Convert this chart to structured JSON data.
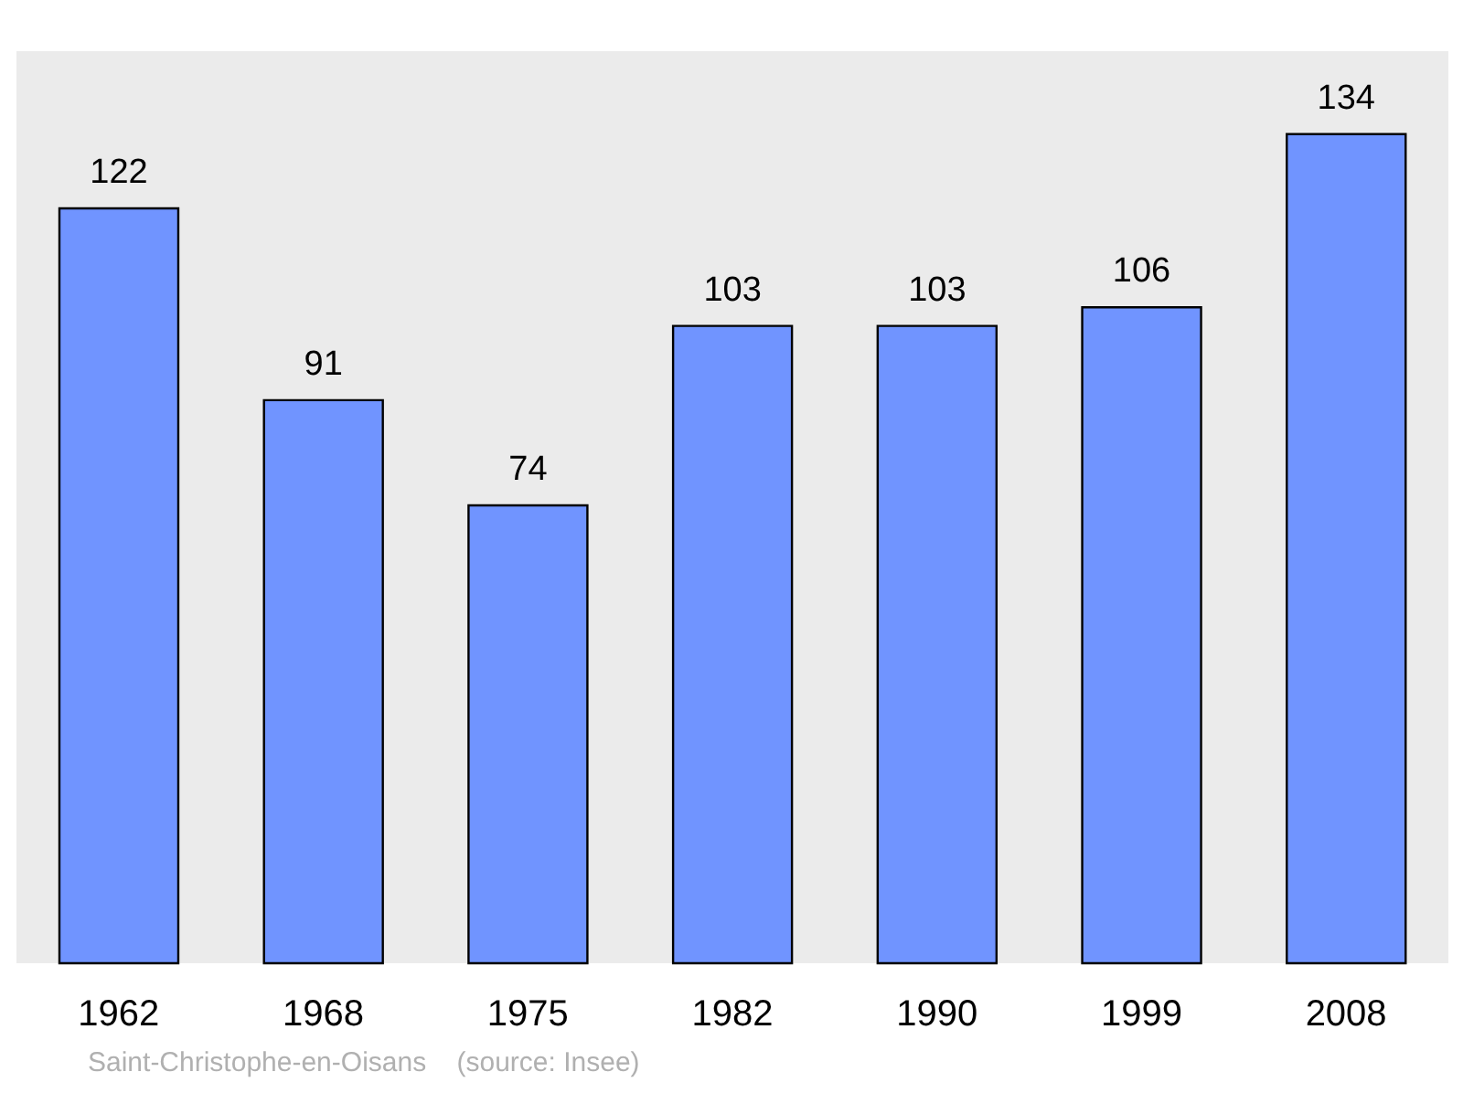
{
  "chart_data": {
    "type": "bar",
    "categories": [
      "1962",
      "1968",
      "1975",
      "1982",
      "1990",
      "1999",
      "2008"
    ],
    "values": [
      122,
      91,
      74,
      103,
      103,
      106,
      134
    ],
    "color": "#7094ff",
    "data_labels": true,
    "annotations": [
      "Saint-Christophe-en-Oisans    (source: Insee)"
    ]
  }
}
